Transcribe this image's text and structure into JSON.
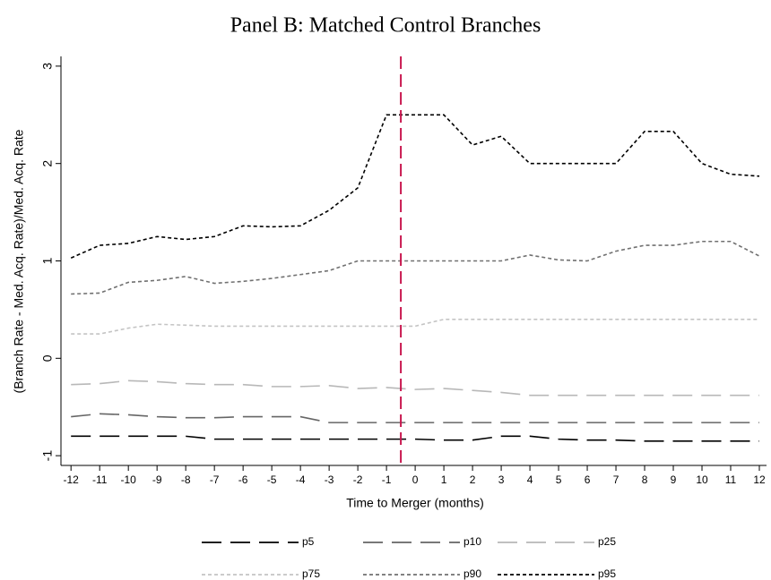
{
  "chart_data": {
    "type": "line",
    "title": "Panel B: Matched Control Branches",
    "x_label": "Time to Merger (months)",
    "y_label": "(Branch Rate - Med. Acq. Rate)/Med. Acq. Rate",
    "x": [
      -12,
      -11,
      -10,
      -9,
      -8,
      -7,
      -6,
      -5,
      -4,
      -3,
      -2,
      -1,
      0,
      1,
      2,
      3,
      4,
      5,
      6,
      7,
      8,
      9,
      10,
      11,
      12
    ],
    "xlim": [
      -12.35,
      12.25
    ],
    "xticks": [
      -12,
      -11,
      -10,
      -9,
      -8,
      -7,
      -6,
      -5,
      -4,
      -3,
      -2,
      -1,
      0,
      1,
      2,
      3,
      4,
      5,
      6,
      7,
      8,
      9,
      10,
      11,
      12
    ],
    "ylim": [
      -1.1,
      3.1
    ],
    "yticks": [
      -1,
      0,
      1,
      2,
      3
    ],
    "vline": {
      "x": -0.5,
      "color": "#c8174f"
    },
    "series": [
      {
        "name": "p5",
        "color": "#000000",
        "dash": "long",
        "values": [
          -0.8,
          -0.8,
          -0.8,
          -0.8,
          -0.8,
          -0.83,
          -0.83,
          -0.83,
          -0.83,
          -0.83,
          -0.83,
          -0.83,
          -0.83,
          -0.84,
          -0.84,
          -0.8,
          -0.8,
          -0.83,
          -0.84,
          -0.84,
          -0.85,
          -0.85,
          -0.85,
          -0.85,
          -0.85
        ]
      },
      {
        "name": "p10",
        "color": "#666666",
        "dash": "long",
        "values": [
          -0.6,
          -0.57,
          -0.58,
          -0.6,
          -0.61,
          -0.61,
          -0.6,
          -0.6,
          -0.6,
          -0.66,
          -0.66,
          -0.66,
          -0.66,
          -0.66,
          -0.66,
          -0.66,
          -0.66,
          -0.66,
          -0.66,
          -0.66,
          -0.66,
          -0.66,
          -0.66,
          -0.66,
          -0.66
        ]
      },
      {
        "name": "p25",
        "color": "#b8b8b8",
        "dash": "long",
        "values": [
          -0.27,
          -0.26,
          -0.23,
          -0.24,
          -0.26,
          -0.27,
          -0.27,
          -0.29,
          -0.29,
          -0.28,
          -0.31,
          -0.3,
          -0.32,
          -0.31,
          -0.33,
          -0.35,
          -0.38,
          -0.38,
          -0.38,
          -0.38,
          -0.38,
          -0.38,
          -0.38,
          -0.38,
          -0.38
        ]
      },
      {
        "name": "p75",
        "color": "#c4c4c4",
        "dash": "short",
        "values": [
          0.25,
          0.25,
          0.31,
          0.35,
          0.34,
          0.33,
          0.33,
          0.33,
          0.33,
          0.33,
          0.33,
          0.33,
          0.33,
          0.4,
          0.4,
          0.4,
          0.4,
          0.4,
          0.4,
          0.4,
          0.4,
          0.4,
          0.4,
          0.4,
          0.4
        ]
      },
      {
        "name": "p90",
        "color": "#707070",
        "dash": "short",
        "values": [
          0.66,
          0.67,
          0.78,
          0.8,
          0.84,
          0.77,
          0.79,
          0.82,
          0.86,
          0.9,
          1.0,
          1.0,
          1.0,
          1.0,
          1.0,
          1.0,
          1.06,
          1.01,
          1.0,
          1.1,
          1.16,
          1.16,
          1.2,
          1.2,
          1.05
        ]
      },
      {
        "name": "p95",
        "color": "#000000",
        "dash": "short",
        "values": [
          1.03,
          1.16,
          1.18,
          1.25,
          1.22,
          1.25,
          1.36,
          1.35,
          1.36,
          1.52,
          1.75,
          2.5,
          2.5,
          2.5,
          2.19,
          2.28,
          2.0,
          2.0,
          2.0,
          2.0,
          2.33,
          2.33,
          2.0,
          1.89,
          1.87
        ]
      }
    ]
  }
}
